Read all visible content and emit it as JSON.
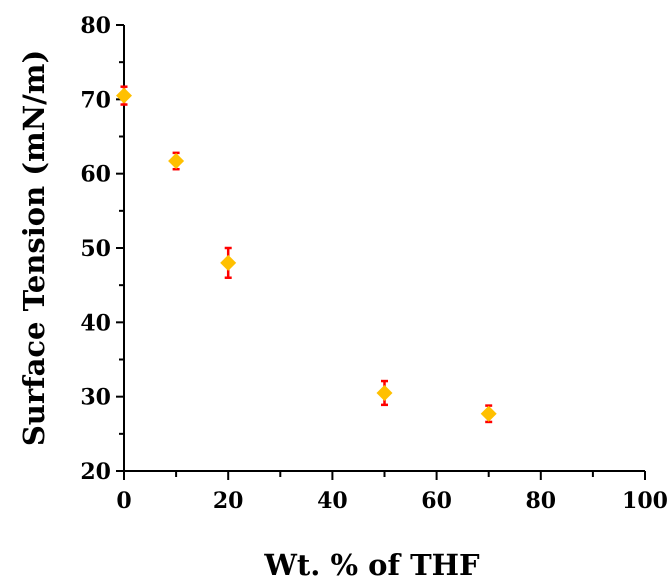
{
  "chart_data": {
    "type": "scatter",
    "xlabel": "Wt. % of THF",
    "ylabel": "Surface Tension (mN/m)",
    "xlim": [
      0,
      100
    ],
    "ylim": [
      20,
      80
    ],
    "x_ticks": [
      0,
      20,
      40,
      60,
      80,
      100
    ],
    "y_ticks": [
      20,
      30,
      40,
      50,
      60,
      70,
      80
    ],
    "x_tick_labels": [
      "0",
      "20",
      "40",
      "60",
      "80",
      "100"
    ],
    "y_tick_labels": [
      "20",
      "30",
      "40",
      "50",
      "60",
      "70",
      "80"
    ],
    "grid": false,
    "legend": "none",
    "marker": "diamond",
    "marker_color": "#FFC000",
    "error_bar_color": "#FF0000",
    "points": [
      {
        "x": 0,
        "y": 70.5,
        "err": 1.2
      },
      {
        "x": 10,
        "y": 61.7,
        "err": 1.1
      },
      {
        "x": 20,
        "y": 48.0,
        "err": 2.0
      },
      {
        "x": 50,
        "y": 30.5,
        "err": 1.6
      },
      {
        "x": 70,
        "y": 27.7,
        "err": 1.1
      }
    ]
  }
}
